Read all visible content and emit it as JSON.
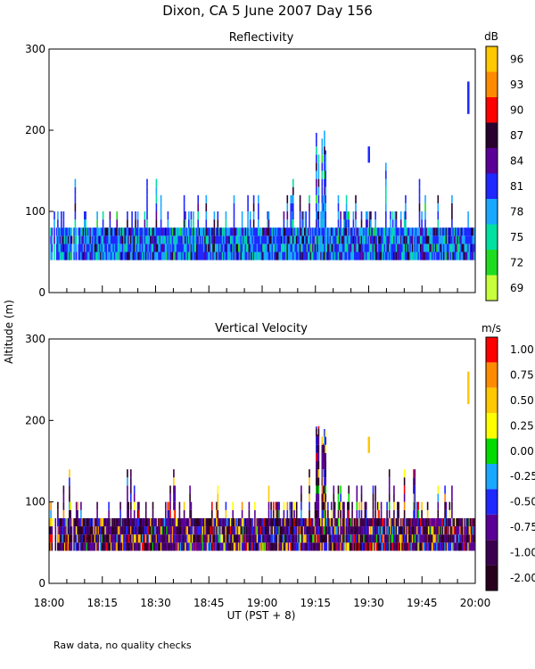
{
  "title": "Dixon, CA  5 June 2007  Day 156",
  "ylabel": "Altitude (m)",
  "xlabel": "UT  (PST + 8)",
  "footnote": "Raw data, no quality checks",
  "x_ticks": [
    "18:00",
    "18:15",
    "18:30",
    "18:45",
    "19:00",
    "19:15",
    "19:30",
    "19:45",
    "20:00"
  ],
  "chart_data": [
    {
      "type": "heatmap",
      "title": "Reflectivity",
      "x_range_minutes_ut": [
        0,
        120
      ],
      "ylim": [
        0,
        300
      ],
      "y_ticks": [
        0,
        100,
        200,
        300
      ],
      "colorbar": {
        "unit": "dB",
        "labels": [
          "96",
          "93",
          "90",
          "87",
          "84",
          "81",
          "78",
          "75",
          "72",
          "69"
        ],
        "colors": [
          "#ffc800",
          "#ff8c00",
          "#ff0000",
          "#2a0030",
          "#5a0096",
          "#1e28ff",
          "#18a8ff",
          "#00e0a0",
          "#20dc20",
          "#c8ff3c"
        ]
      },
      "echo_region": {
        "alt_bottom": 40,
        "typical_top": 80,
        "max_top": 200,
        "isolated_echoes": [
          {
            "time": "19:30",
            "alt": [
              160,
              180
            ]
          },
          {
            "time": "19:58",
            "alt": [
              220,
              260
            ]
          }
        ]
      }
    },
    {
      "type": "heatmap",
      "title": "Vertical Velocity",
      "x_range_minutes_ut": [
        0,
        120
      ],
      "ylim": [
        0,
        300
      ],
      "y_ticks": [
        0,
        100,
        200,
        300
      ],
      "colorbar": {
        "unit": "m/s",
        "labels": [
          "1.00",
          "0.75",
          "0.50",
          "0.25",
          "0.00",
          "-0.25",
          "-0.50",
          "-0.75",
          "-1.00",
          "-2.00"
        ],
        "colors": [
          "#ff0000",
          "#ff8c00",
          "#ffc800",
          "#ffff00",
          "#00dc00",
          "#18a8ff",
          "#1e28ff",
          "#5a0096",
          "#3c0050",
          "#28001e"
        ]
      },
      "echo_region": {
        "alt_bottom": 40,
        "typical_top": 80,
        "max_top": 200,
        "isolated_echoes": [
          {
            "time": "19:30",
            "alt": [
              160,
              180
            ]
          },
          {
            "time": "19:58",
            "alt": [
              220,
              260
            ]
          }
        ]
      }
    }
  ]
}
